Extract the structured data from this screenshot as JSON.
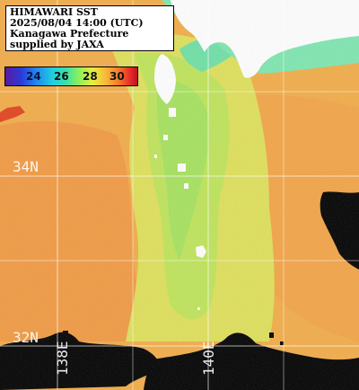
{
  "info": {
    "line1": "HIMAWARI SST",
    "line2": "2025/08/04 14:00 (UTC)",
    "line3": "Kanagawa Prefecture",
    "line4": "supplied by JAXA"
  },
  "colorbar": {
    "ticks": [
      "24",
      "26",
      "28",
      "30"
    ],
    "min_value": 23,
    "max_value": 31
  },
  "grid": {
    "lat_labels": [
      "34N",
      "32N"
    ],
    "lon_labels": [
      "138E",
      "140E"
    ]
  },
  "colors": {
    "land": "#ffffff",
    "no_data": "#000000",
    "warm_sea": "#f4a040",
    "mid_sea": "#c8e85a",
    "cool_sea": "#6ee0a8"
  }
}
